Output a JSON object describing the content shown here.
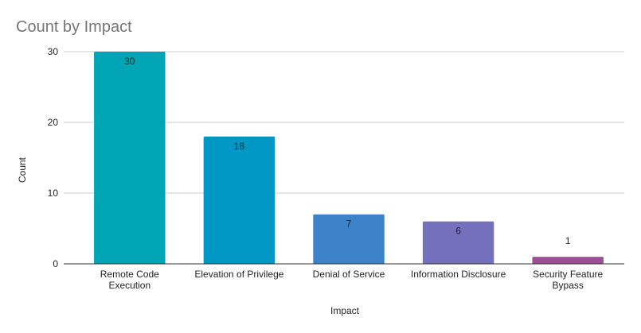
{
  "chart_data": {
    "type": "bar",
    "title": "Count by Impact",
    "xlabel": "Impact",
    "ylabel": "Count",
    "categories": [
      [
        "Remote Code",
        "Execution"
      ],
      [
        "Elevation of Privilege"
      ],
      [
        "Denial of Service"
      ],
      [
        "Information Disclosure"
      ],
      [
        "Security Feature",
        "Bypass"
      ]
    ],
    "values": [
      30,
      18,
      7,
      6,
      1
    ],
    "colors": [
      "#00a5b5",
      "#0097c4",
      "#3b82c9",
      "#7470bb",
      "#9c4f96"
    ],
    "ylim": [
      0,
      30
    ],
    "yticks": [
      0,
      10,
      20,
      30
    ],
    "grid": true,
    "legend": "none"
  }
}
